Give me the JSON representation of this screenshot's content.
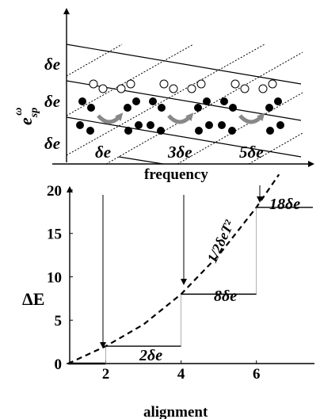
{
  "top_panel": {
    "y_axis_label_base": "e",
    "y_axis_label_sub": "sp",
    "y_axis_label_sup": "ω",
    "level_spacing_labels": [
      "δe",
      "δe",
      "δe"
    ],
    "x_axis_label": "frequency",
    "frequency_labels": [
      "δe",
      "3δe",
      "5δe"
    ],
    "colors": {
      "occupied": "#000000",
      "empty": "#ffffff",
      "arrow": "#888888"
    }
  },
  "bottom_panel": {
    "y_axis_label": "ΔE",
    "x_axis_label": "alignment",
    "y_tick_labels": [
      "0",
      "5",
      "10",
      "15",
      "20"
    ],
    "x_tick_labels": [
      "2",
      "4",
      "6"
    ],
    "curve_label": "1/2δeT²",
    "step_labels": [
      "2δe",
      "8δe",
      "18δe"
    ]
  },
  "chart_data": {
    "type": "line",
    "xlabel": "alignment",
    "ylabel": "ΔE",
    "xlim": [
      1,
      7.5
    ],
    "ylim": [
      0,
      21
    ],
    "series": [
      {
        "name": "1/2δeT²",
        "style": "dashed",
        "x": [
          1,
          2,
          3,
          4,
          5,
          6,
          6.6
        ],
        "y": [
          0,
          2,
          4.5,
          8,
          12.5,
          18,
          21.8
        ]
      },
      {
        "name": "",
        "style": "step",
        "x": [
          1,
          2,
          4,
          6,
          7.5
        ],
        "y": [
          0,
          2,
          8,
          18,
          18
        ]
      }
    ],
    "annotations": [
      "2δe",
      "8δe",
      "18δe"
    ]
  }
}
